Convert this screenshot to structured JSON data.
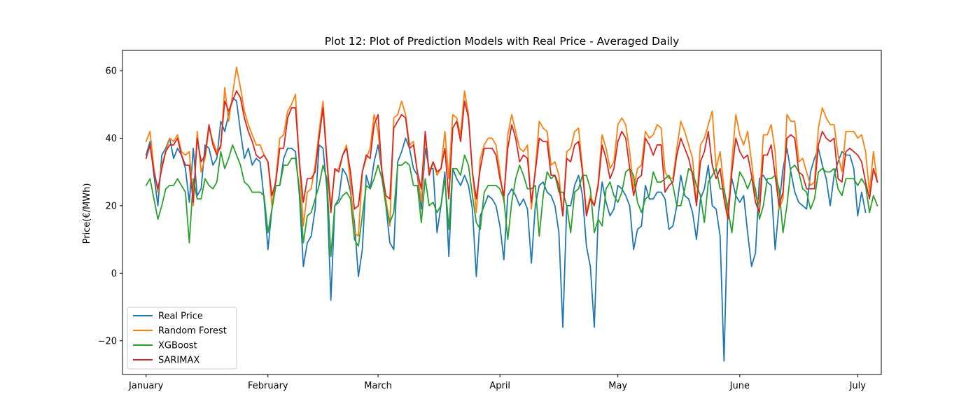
{
  "chart_data": {
    "type": "line",
    "title": "Plot 12: Plot of Prediction Models with Real Price - Averaged Daily",
    "xlabel": "",
    "ylabel": "Price(€/MWh)",
    "x_start": "2019-01-01",
    "x_end": "2019-06-30",
    "xlim": [
      "2018-12-26",
      "2019-07-07"
    ],
    "ylim": [
      -30,
      66
    ],
    "yticks": [
      -20,
      0,
      20,
      40,
      60
    ],
    "xticks": [
      {
        "label": "January",
        "date": "2019-01-01"
      },
      {
        "label": "February",
        "date": "2019-02-01"
      },
      {
        "label": "March",
        "date": "2019-03-01"
      },
      {
        "label": "April",
        "date": "2019-04-01"
      },
      {
        "label": "May",
        "date": "2019-05-01"
      },
      {
        "label": "June",
        "date": "2019-06-01"
      },
      {
        "label": "July",
        "date": "2019-07-01"
      }
    ],
    "grid": false,
    "legend_position": "lower-left",
    "series": [
      {
        "name": "Real Price",
        "color": "#1f77b4",
        "values": [
          35,
          39,
          29,
          20,
          35,
          37,
          40,
          34,
          37,
          35,
          31,
          21,
          37,
          23,
          25,
          38,
          37,
          32,
          34,
          45,
          42,
          47,
          52,
          51,
          42,
          34,
          37,
          32,
          34,
          33,
          22,
          7,
          19,
          26,
          26,
          34,
          37,
          37,
          36,
          23,
          2,
          9,
          11,
          19,
          38,
          37,
          25,
          -8,
          20,
          22,
          31,
          29,
          24,
          15,
          -1,
          7,
          29,
          25,
          33,
          38,
          30,
          20,
          9,
          7,
          33,
          36,
          40,
          37,
          31,
          29,
          19,
          37,
          31,
          31,
          12,
          20,
          30,
          5,
          31,
          28,
          26,
          29,
          26,
          19,
          -1,
          17,
          20,
          23,
          22,
          20,
          14,
          4,
          23,
          25,
          23,
          20,
          22,
          19,
          3,
          20,
          26,
          27,
          24,
          23,
          20,
          12,
          -16,
          20,
          20,
          26,
          29,
          23,
          8,
          2,
          -16,
          17,
          27,
          21,
          17,
          19,
          26,
          25,
          23,
          20,
          7,
          13,
          14,
          26,
          22,
          22,
          24,
          24,
          22,
          13,
          14,
          20,
          29,
          23,
          22,
          18,
          10,
          22,
          25,
          32,
          20,
          19,
          11,
          -26,
          20,
          28,
          23,
          21,
          23,
          12,
          2,
          6,
          28,
          29,
          27,
          26,
          7,
          20,
          31,
          37,
          30,
          24,
          21,
          20,
          19,
          30,
          34,
          37,
          32,
          28,
          20,
          29,
          33,
          36,
          35,
          35,
          31,
          17,
          24,
          18
        ]
      },
      {
        "name": "Random Forest",
        "color": "#ff7f0e",
        "values": [
          39,
          42,
          31,
          24,
          32,
          36,
          40,
          39,
          41,
          36,
          35,
          36,
          20,
          42,
          30,
          34,
          43,
          39,
          36,
          37,
          55,
          45,
          53,
          61,
          55,
          48,
          44,
          41,
          38,
          38,
          35,
          33,
          20,
          28,
          40,
          41,
          48,
          50,
          53,
          32,
          14,
          24,
          25,
          32,
          42,
          51,
          34,
          20,
          30,
          31,
          35,
          38,
          26,
          12,
          11,
          30,
          34,
          37,
          47,
          42,
          30,
          22,
          14,
          46,
          47,
          51,
          47,
          38,
          39,
          30,
          21,
          41,
          30,
          33,
          29,
          31,
          42,
          28,
          47,
          46,
          41,
          54,
          47,
          30,
          18,
          34,
          38,
          40,
          40,
          38,
          30,
          21,
          41,
          47,
          42,
          37,
          36,
          38,
          19,
          31,
          45,
          43,
          42,
          32,
          33,
          29,
          17,
          36,
          37,
          42,
          43,
          31,
          18,
          23,
          20,
          27,
          41,
          37,
          31,
          33,
          44,
          46,
          44,
          36,
          25,
          31,
          32,
          42,
          40,
          41,
          44,
          43,
          30,
          28,
          28,
          37,
          45,
          42,
          38,
          34,
          20,
          38,
          40,
          44,
          48,
          31,
          36,
          25,
          17,
          33,
          47,
          41,
          38,
          42,
          33,
          23,
          21,
          41,
          41,
          44,
          36,
          19,
          22,
          47,
          45,
          45,
          33,
          34,
          30,
          26,
          27,
          43,
          49,
          46,
          44,
          44,
          35,
          30,
          42,
          42,
          42,
          40,
          41,
          36,
          24,
          36,
          27
        ]
      },
      {
        "name": "XGBoost",
        "color": "#2ca02c",
        "values": [
          26,
          28,
          22,
          16,
          20,
          25,
          26,
          26,
          28,
          26,
          24,
          9,
          28,
          22,
          22,
          28,
          26,
          25,
          27,
          36,
          31,
          34,
          38,
          35,
          32,
          27,
          26,
          24,
          24,
          24,
          23,
          12,
          19,
          26,
          26,
          32,
          32,
          34,
          34,
          25,
          9,
          17,
          18,
          22,
          26,
          32,
          28,
          5,
          20,
          21,
          23,
          24,
          22,
          10,
          8,
          17,
          26,
          25,
          28,
          32,
          28,
          20,
          15,
          18,
          32,
          32,
          33,
          32,
          26,
          26,
          15,
          28,
          20,
          21,
          18,
          20,
          28,
          13,
          31,
          31,
          29,
          35,
          32,
          23,
          15,
          13,
          24,
          26,
          26,
          26,
          25,
          22,
          10,
          21,
          28,
          32,
          29,
          25,
          25,
          26,
          11,
          23,
          30,
          28,
          29,
          24,
          24,
          20,
          12,
          24,
          25,
          29,
          29,
          25,
          12,
          16,
          14,
          25,
          27,
          23,
          21,
          24,
          30,
          31,
          29,
          21,
          18,
          22,
          23,
          30,
          27,
          27,
          28,
          29,
          26,
          20,
          20,
          25,
          31,
          30,
          26,
          23,
          15,
          27,
          29,
          31,
          25,
          25,
          19,
          12,
          23,
          30,
          28,
          25,
          28,
          25,
          16,
          20,
          28,
          28,
          29,
          25,
          12,
          20,
          31,
          32,
          30,
          25,
          24,
          19,
          22,
          30,
          31,
          30,
          30,
          31,
          25,
          23,
          28,
          28,
          28,
          26,
          28,
          26,
          18,
          23,
          20
        ]
      },
      {
        "name": "SARIMAX",
        "color": "#d62728",
        "values": [
          34,
          38,
          30,
          25,
          31,
          36,
          38,
          38,
          40,
          35,
          32,
          32,
          21,
          40,
          33,
          35,
          44,
          38,
          35,
          38,
          51,
          48,
          51,
          54,
          52,
          46,
          42,
          39,
          35,
          34,
          35,
          33,
          23,
          27,
          37,
          37,
          46,
          49,
          49,
          33,
          21,
          28,
          28,
          30,
          40,
          49,
          33,
          18,
          31,
          30,
          35,
          37,
          30,
          19,
          20,
          30,
          35,
          34,
          44,
          47,
          30,
          23,
          22,
          43,
          45,
          47,
          46,
          37,
          38,
          30,
          25,
          42,
          29,
          33,
          30,
          31,
          37,
          22,
          43,
          45,
          39,
          51,
          46,
          30,
          22,
          31,
          37,
          37,
          37,
          35,
          28,
          23,
          37,
          44,
          40,
          33,
          35,
          34,
          21,
          30,
          40,
          39,
          39,
          29,
          29,
          26,
          17,
          34,
          33,
          38,
          39,
          30,
          17,
          22,
          20,
          26,
          38,
          34,
          28,
          31,
          39,
          42,
          40,
          31,
          23,
          28,
          29,
          40,
          38,
          35,
          38,
          38,
          24,
          26,
          27,
          35,
          40,
          37,
          34,
          29,
          20,
          33,
          36,
          42,
          32,
          28,
          31,
          22,
          16,
          30,
          40,
          36,
          34,
          35,
          29,
          21,
          18,
          35,
          35,
          38,
          29,
          20,
          24,
          40,
          41,
          40,
          30,
          29,
          25,
          25,
          25,
          38,
          42,
          40,
          39,
          40,
          28,
          27,
          36,
          37,
          36,
          35,
          33,
          27,
          22,
          31,
          27
        ]
      }
    ]
  }
}
